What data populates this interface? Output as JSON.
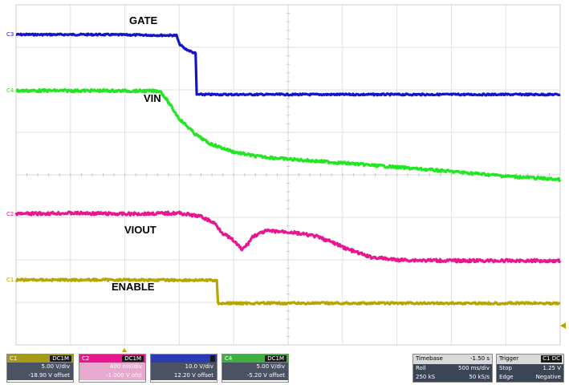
{
  "chart_data": {
    "type": "line",
    "title": "",
    "xlabel": "",
    "ylabel": "",
    "grid": true,
    "x_divisions": 10,
    "y_divisions": 8,
    "x_unit": "div",
    "y_unit": "div",
    "xlim": [
      0,
      10
    ],
    "ylim": [
      0,
      8
    ],
    "series": [
      {
        "name": "GATE",
        "channel": "C3",
        "color": "#1414c8",
        "x": [
          0,
          1.5,
          2.95,
          3.0,
          3.1,
          3.25,
          3.3,
          3.32,
          10
        ],
        "y": [
          7.3,
          7.3,
          7.28,
          7.08,
          6.97,
          6.88,
          6.86,
          5.89,
          5.89
        ]
      },
      {
        "name": "VIN",
        "channel": "C4",
        "color": "#22e622",
        "x": [
          0,
          1.5,
          2.65,
          2.75,
          3.0,
          3.3,
          3.55,
          4.0,
          4.4,
          5.0,
          6.0,
          7.0,
          8.0,
          9.0,
          10
        ],
        "y": [
          5.98,
          5.98,
          5.97,
          5.8,
          5.32,
          4.95,
          4.74,
          4.54,
          4.44,
          4.37,
          4.28,
          4.18,
          4.08,
          3.97,
          3.89
        ]
      },
      {
        "name": "VIOUT",
        "channel": "C2",
        "color": "#e8178f",
        "x": [
          0,
          1.0,
          2.0,
          3.0,
          3.4,
          3.65,
          3.8,
          4.0,
          4.15,
          4.25,
          4.35,
          4.6,
          5.0,
          5.5,
          5.8,
          6.1,
          6.5,
          7.0,
          8.0,
          9.0,
          10
        ],
        "y": [
          3.08,
          3.1,
          3.08,
          3.1,
          3.02,
          2.86,
          2.63,
          2.45,
          2.24,
          2.36,
          2.55,
          2.68,
          2.66,
          2.56,
          2.42,
          2.25,
          2.07,
          2.0,
          1.98,
          1.98,
          1.98
        ]
      },
      {
        "name": "ENABLE",
        "channel": "C1",
        "color": "#b5a600",
        "x": [
          0,
          2.0,
          3.69,
          3.71,
          10
        ],
        "y": [
          1.53,
          1.53,
          1.52,
          0.98,
          0.98
        ]
      }
    ],
    "annotations": [
      "GATE",
      "VIN",
      "VIOUT",
      "ENABLE"
    ],
    "channel_markers": [
      "C3",
      "C4",
      "C2",
      "C1"
    ]
  },
  "colors": {
    "ch1": "#b5a600",
    "ch2": "#e8178f",
    "ch3": "#1414c8",
    "ch4": "#22e622",
    "ch1_box": "#a79a16",
    "ch2_box": "#e8a9cf",
    "ch3_box": "#2b3bb3",
    "ch4_box": "#3fb03f"
  },
  "status_bar": {
    "channels": [
      {
        "id": "C1",
        "coupling": "DC1M",
        "scale": "5.00 V/div",
        "offset": "-18.90 V offset"
      },
      {
        "id": "C2",
        "coupling": "DC1M",
        "scale": "400 mV/div",
        "offset": "-1.000 V ofst"
      },
      {
        "id": "",
        "coupling": "",
        "scale": "10.0 V/div",
        "offset": "12.20 V offset"
      },
      {
        "id": "C4",
        "coupling": "DC1M",
        "scale": "5.00 V/div",
        "offset": "-5.20 V offset"
      }
    ],
    "timebase": {
      "label": "Timebase",
      "delay": "-1.50 s",
      "mode": "Roll",
      "scale": "500 ms/div",
      "points": "250 kS",
      "rate": "50 kS/s"
    },
    "trigger": {
      "label": "Trigger",
      "badge": "C1 DC",
      "mode": "Stop",
      "level": "1.25 V",
      "type": "Edge",
      "slope": "Negative"
    }
  }
}
